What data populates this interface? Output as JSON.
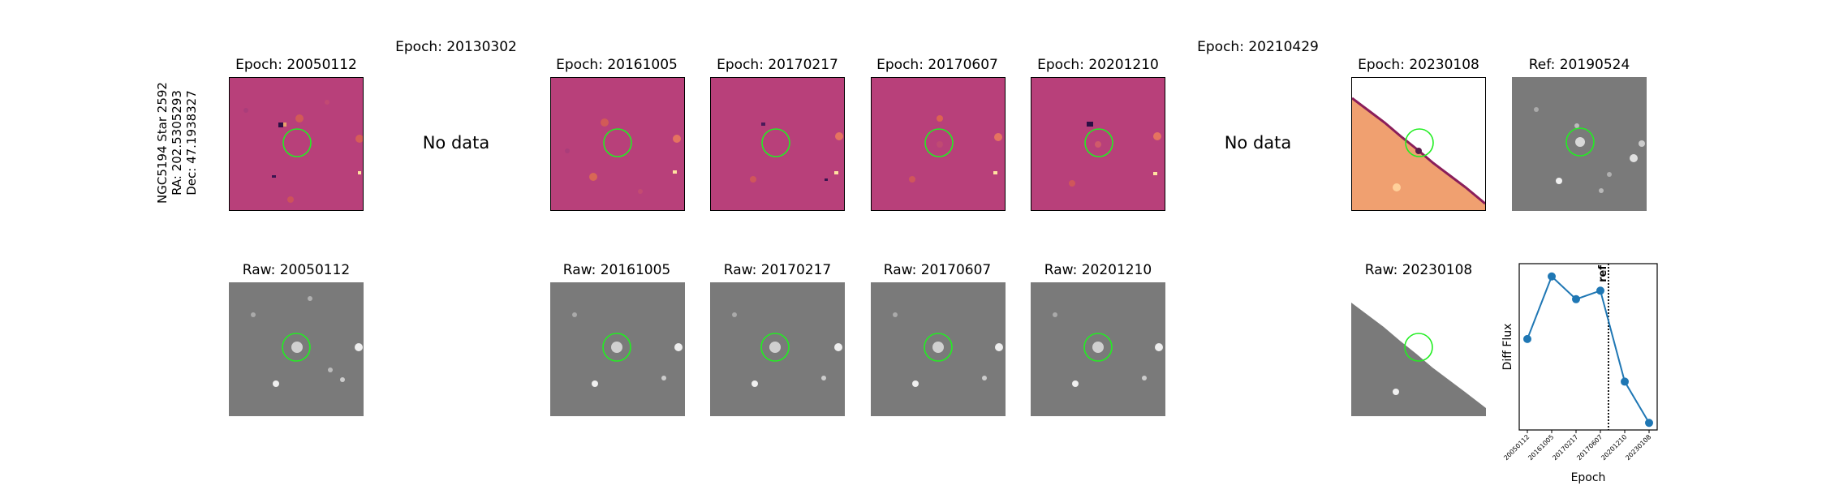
{
  "star_label": {
    "name": "NGC5194 Star 2592",
    "ra": "RA: 202.5305293",
    "dec": "Dec: 47.1938327"
  },
  "diff_titles": {
    "e1": "Epoch: 20050112",
    "e2": "Epoch: 20130302",
    "e3": "Epoch: 20161005",
    "e4": "Epoch: 20170217",
    "e5": "Epoch: 20170607",
    "e6": "Epoch: 20201210",
    "e7": "Epoch: 20210429",
    "e8": "Epoch: 20230108",
    "ref": "Ref: 20190524"
  },
  "no_data_text": "No data",
  "raw_titles": {
    "r1": "Raw: 20050112",
    "r3": "Raw: 20161005",
    "r4": "Raw: 20170217",
    "r5": "Raw: 20170607",
    "r6": "Raw: 20201210",
    "r8": "Raw: 20230108"
  },
  "colors": {
    "diff_background": "#b8407a",
    "raw_background": "#7a7a7a",
    "marker_circle": "#22ee22",
    "series_line": "#1f77b4"
  },
  "chart_data": {
    "type": "line",
    "x": [
      "20050112",
      "20161005",
      "20170217",
      "20170607",
      "20201210",
      "20230108"
    ],
    "values": [
      0.52,
      0.96,
      0.8,
      0.86,
      0.22,
      -0.07
    ],
    "xlabel": "Epoch",
    "ylabel": "Diff Flux",
    "ylim": [
      -0.12,
      1.05
    ],
    "reference_line": {
      "position": "between 20170607 and 20201210",
      "label": "ref",
      "style": "dotted"
    },
    "grid": false
  }
}
